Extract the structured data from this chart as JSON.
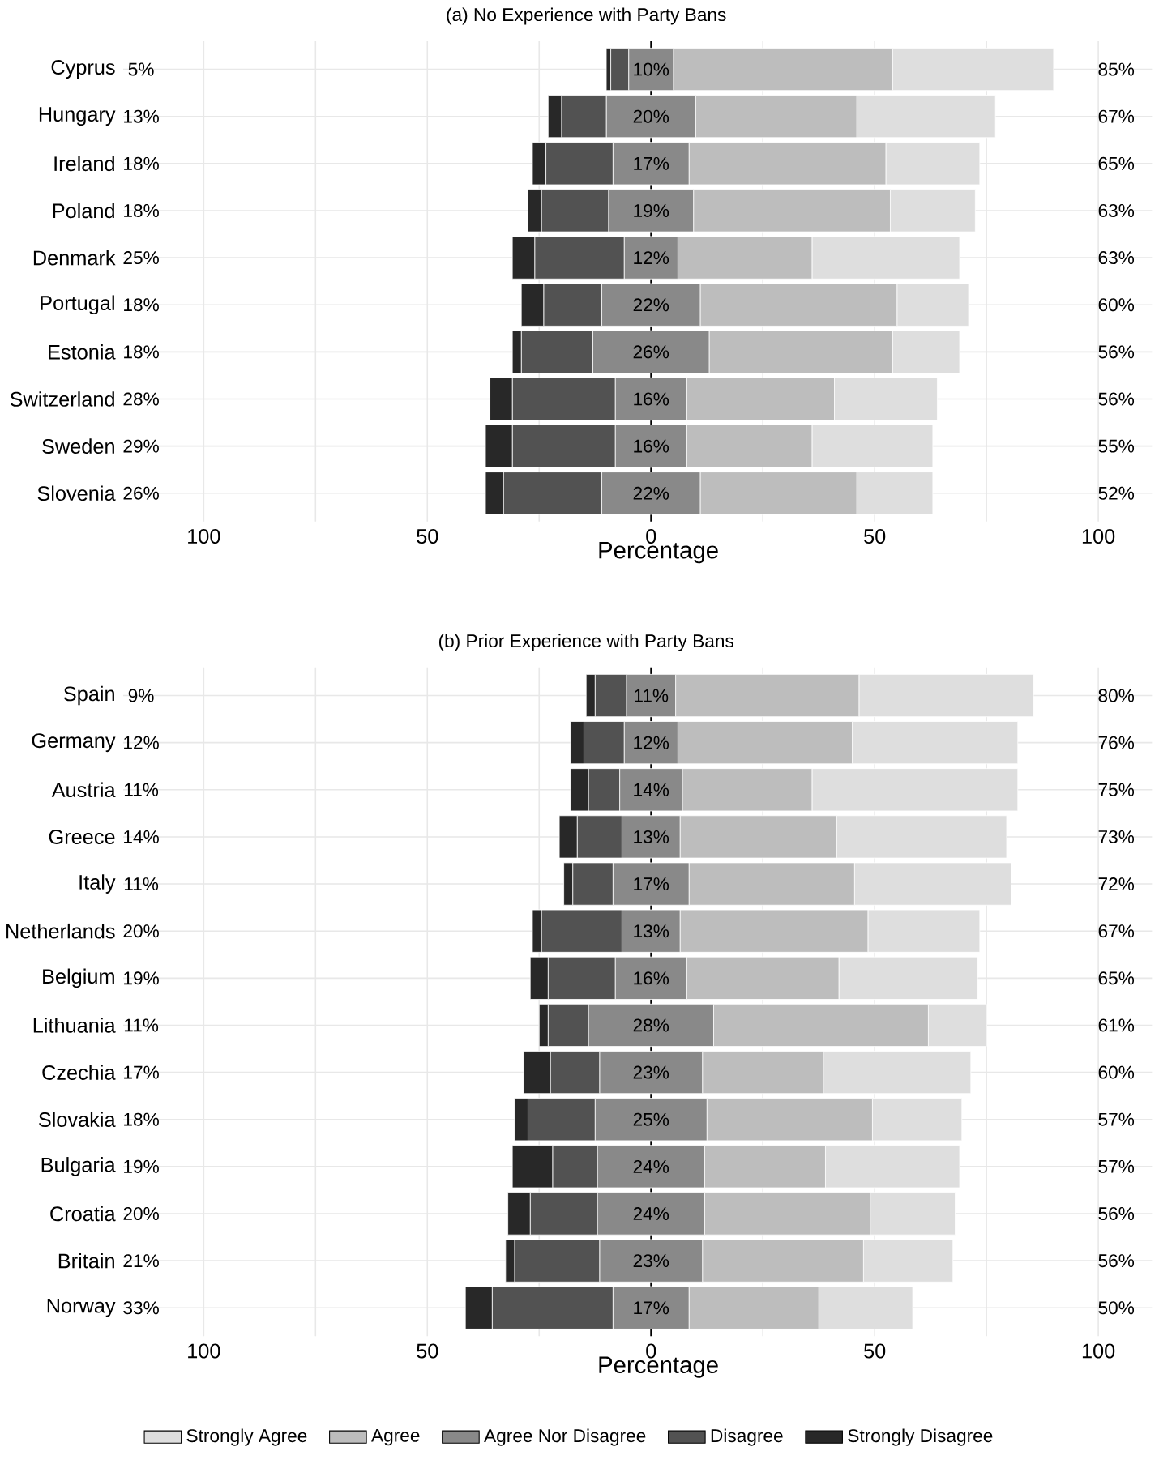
{
  "chart_data": [
    {
      "type": "bar",
      "orientation": "horizontal",
      "title": "(a) No Experience with Party Bans",
      "xlabel": "Percentage",
      "categories": [
        "Cyprus",
        "Hungary",
        "Ireland",
        "Poland",
        "Denmark",
        "Portugal",
        "Estonia",
        "Switzerland",
        "Sweden",
        "Slovenia"
      ],
      "series": [
        {
          "color": "#dedede",
          "values": [
            36,
            31,
            21,
            19,
            33,
            16,
            15,
            23,
            27,
            17
          ],
          "base": [
            54,
            46,
            52.5,
            53.5,
            36,
            55,
            54,
            41,
            36,
            46
          ]
        },
        {
          "color": "#bdbdbd",
          "values": [
            49,
            36,
            44,
            44,
            30,
            44,
            41,
            33,
            28,
            35
          ],
          "base": [
            5,
            10,
            8.5,
            9.5,
            6,
            11,
            13,
            8,
            8,
            11
          ]
        },
        {
          "color": "#898989",
          "values": [
            10,
            20,
            17,
            19,
            12,
            22,
            26,
            16,
            16,
            22
          ],
          "base": [
            -5,
            -10,
            -8.5,
            -9.5,
            -6,
            -11,
            -13,
            -8,
            -8,
            -11
          ],
          "value_labels": [
            "10%",
            "20%",
            "17%",
            "19%",
            "12%",
            "22%",
            "26%",
            "16%",
            "16%",
            "22%"
          ]
        },
        {
          "color": "#525252",
          "values": [
            4,
            10,
            15,
            15,
            20,
            13,
            16,
            23,
            23,
            22
          ],
          "base": [
            -9,
            -20,
            -23.5,
            -24.5,
            -26,
            -24,
            -29,
            -31,
            -31,
            -33
          ]
        },
        {
          "color": "#282828",
          "values": [
            1,
            3,
            3,
            3,
            5,
            5,
            2,
            5,
            6,
            4
          ],
          "base": [
            -10,
            -23,
            -26.5,
            -27.5,
            -31,
            -29,
            -31,
            -36,
            -37,
            -37
          ]
        }
      ],
      "xlim": [
        -118,
        112
      ],
      "xticks": [
        {
          "value": -100,
          "label": "100"
        },
        {
          "value": -75,
          "label": null
        },
        {
          "value": -50,
          "label": "50"
        },
        {
          "value": -25,
          "label": null
        },
        0,
        {
          "value": 25,
          "label": null
        },
        50,
        {
          "value": 75,
          "label": null
        },
        100
      ],
      "grid": true,
      "ref_lines": [
        {
          "axis": "x",
          "value": 0,
          "color": "#000000"
        }
      ],
      "annotations": [
        "5%",
        "85%",
        "13%",
        "67%",
        "18%",
        "65%",
        "18%",
        "63%",
        "25%",
        "63%",
        "18%",
        "60%",
        "18%",
        "56%",
        "28%",
        "56%",
        "29%",
        "55%",
        "26%",
        "52%"
      ]
    },
    {
      "type": "bar",
      "orientation": "horizontal",
      "title": "(b) Prior Experience with Party Bans",
      "xlabel": "Percentage",
      "categories": [
        "Spain",
        "Germany",
        "Austria",
        "Greece",
        "Italy",
        "Netherlands",
        "Belgium",
        "Lithuania",
        "Czechia",
        "Slovakia",
        "Bulgaria",
        "Croatia",
        "Britain",
        "Norway"
      ],
      "series": [
        {
          "name": "Strongly Agree",
          "color": "#dedede",
          "values": [
            39,
            37,
            46,
            38,
            35,
            25,
            31,
            13,
            33,
            20,
            30,
            19,
            20,
            21
          ],
          "base": [
            46.5,
            45,
            36,
            41.5,
            45.5,
            48.5,
            42,
            62,
            38.5,
            49.5,
            39,
            49,
            47.5,
            37.5
          ]
        },
        {
          "name": "Agree",
          "color": "#bdbdbd",
          "values": [
            41,
            39,
            29,
            35,
            37,
            42,
            34,
            48,
            27,
            37,
            27,
            37,
            36,
            29
          ],
          "base": [
            5.5,
            6,
            7,
            6.5,
            8.5,
            6.5,
            8,
            14,
            11.5,
            12.5,
            12,
            12,
            11.5,
            8.5
          ]
        },
        {
          "name": "Agree Nor Disagree",
          "color": "#898989",
          "values": [
            11,
            12,
            14,
            13,
            17,
            13,
            16,
            28,
            23,
            25,
            24,
            24,
            23,
            17
          ],
          "base": [
            -5.5,
            -6,
            -7,
            -6.5,
            -8.5,
            -6.5,
            -8,
            -14,
            -11.5,
            -12.5,
            -12,
            -12,
            -11.5,
            -8.5
          ],
          "value_labels": [
            "11%",
            "12%",
            "14%",
            "13%",
            "17%",
            "13%",
            "16%",
            "28%",
            "23%",
            "25%",
            "24%",
            "24%",
            "23%",
            "17%"
          ]
        },
        {
          "name": "Disagree",
          "color": "#525252",
          "values": [
            7,
            9,
            7,
            10,
            9,
            18,
            15,
            9,
            11,
            15,
            10,
            15,
            19,
            27
          ],
          "base": [
            -12.5,
            -15,
            -14,
            -16.5,
            -17.5,
            -24.5,
            -23,
            -23,
            -22.5,
            -27.5,
            -22,
            -27,
            -30.5,
            -35.5
          ]
        },
        {
          "name": "Strongly Disagree",
          "color": "#282828",
          "values": [
            2,
            3,
            4,
            4,
            2,
            2,
            4,
            2,
            6,
            3,
            9,
            5,
            2,
            6
          ],
          "base": [
            -14.5,
            -18,
            -18,
            -20.5,
            -19.5,
            -26.5,
            -27,
            -25,
            -28.5,
            -30.5,
            -31,
            -32,
            -32.5,
            -41.5
          ]
        }
      ],
      "xlim": [
        -118,
        112
      ],
      "xticks": [
        {
          "value": -100,
          "label": "100"
        },
        {
          "value": -75,
          "label": null
        },
        {
          "value": -50,
          "label": "50"
        },
        {
          "value": -25,
          "label": null
        },
        0,
        {
          "value": 25,
          "label": null
        },
        50,
        {
          "value": 75,
          "label": null
        },
        100
      ],
      "grid": true,
      "legend": "bottom",
      "ref_lines": [
        {
          "axis": "x",
          "value": 0,
          "color": "#000000"
        }
      ],
      "annotations": [
        "9%",
        "80%",
        "12%",
        "76%",
        "11%",
        "75%",
        "14%",
        "73%",
        "11%",
        "72%",
        "20%",
        "67%",
        "19%",
        "65%",
        "11%",
        "61%",
        "17%",
        "60%",
        "18%",
        "57%",
        "19%",
        "57%",
        "20%",
        "56%",
        "21%",
        "56%",
        "33%",
        "50%"
      ]
    }
  ]
}
